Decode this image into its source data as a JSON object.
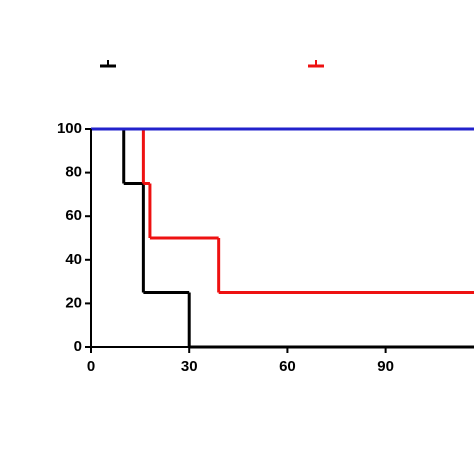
{
  "chart_data": {
    "type": "step",
    "xlim": [
      0,
      117
    ],
    "xticks": [
      0,
      30,
      60,
      90
    ],
    "ylim": [
      0,
      100
    ],
    "yticks": [
      0,
      20,
      40,
      60,
      80,
      100
    ],
    "series": [
      {
        "color": "#000000",
        "x": [
          0,
          10,
          16,
          30
        ],
        "values": [
          100,
          75,
          25,
          0
        ]
      },
      {
        "color": "#ee1111",
        "x": [
          0,
          16,
          18,
          39
        ],
        "values": [
          100,
          75,
          50,
          25
        ]
      },
      {
        "color": "#2222cc",
        "x": [
          0
        ],
        "values": [
          100
        ]
      }
    ]
  }
}
